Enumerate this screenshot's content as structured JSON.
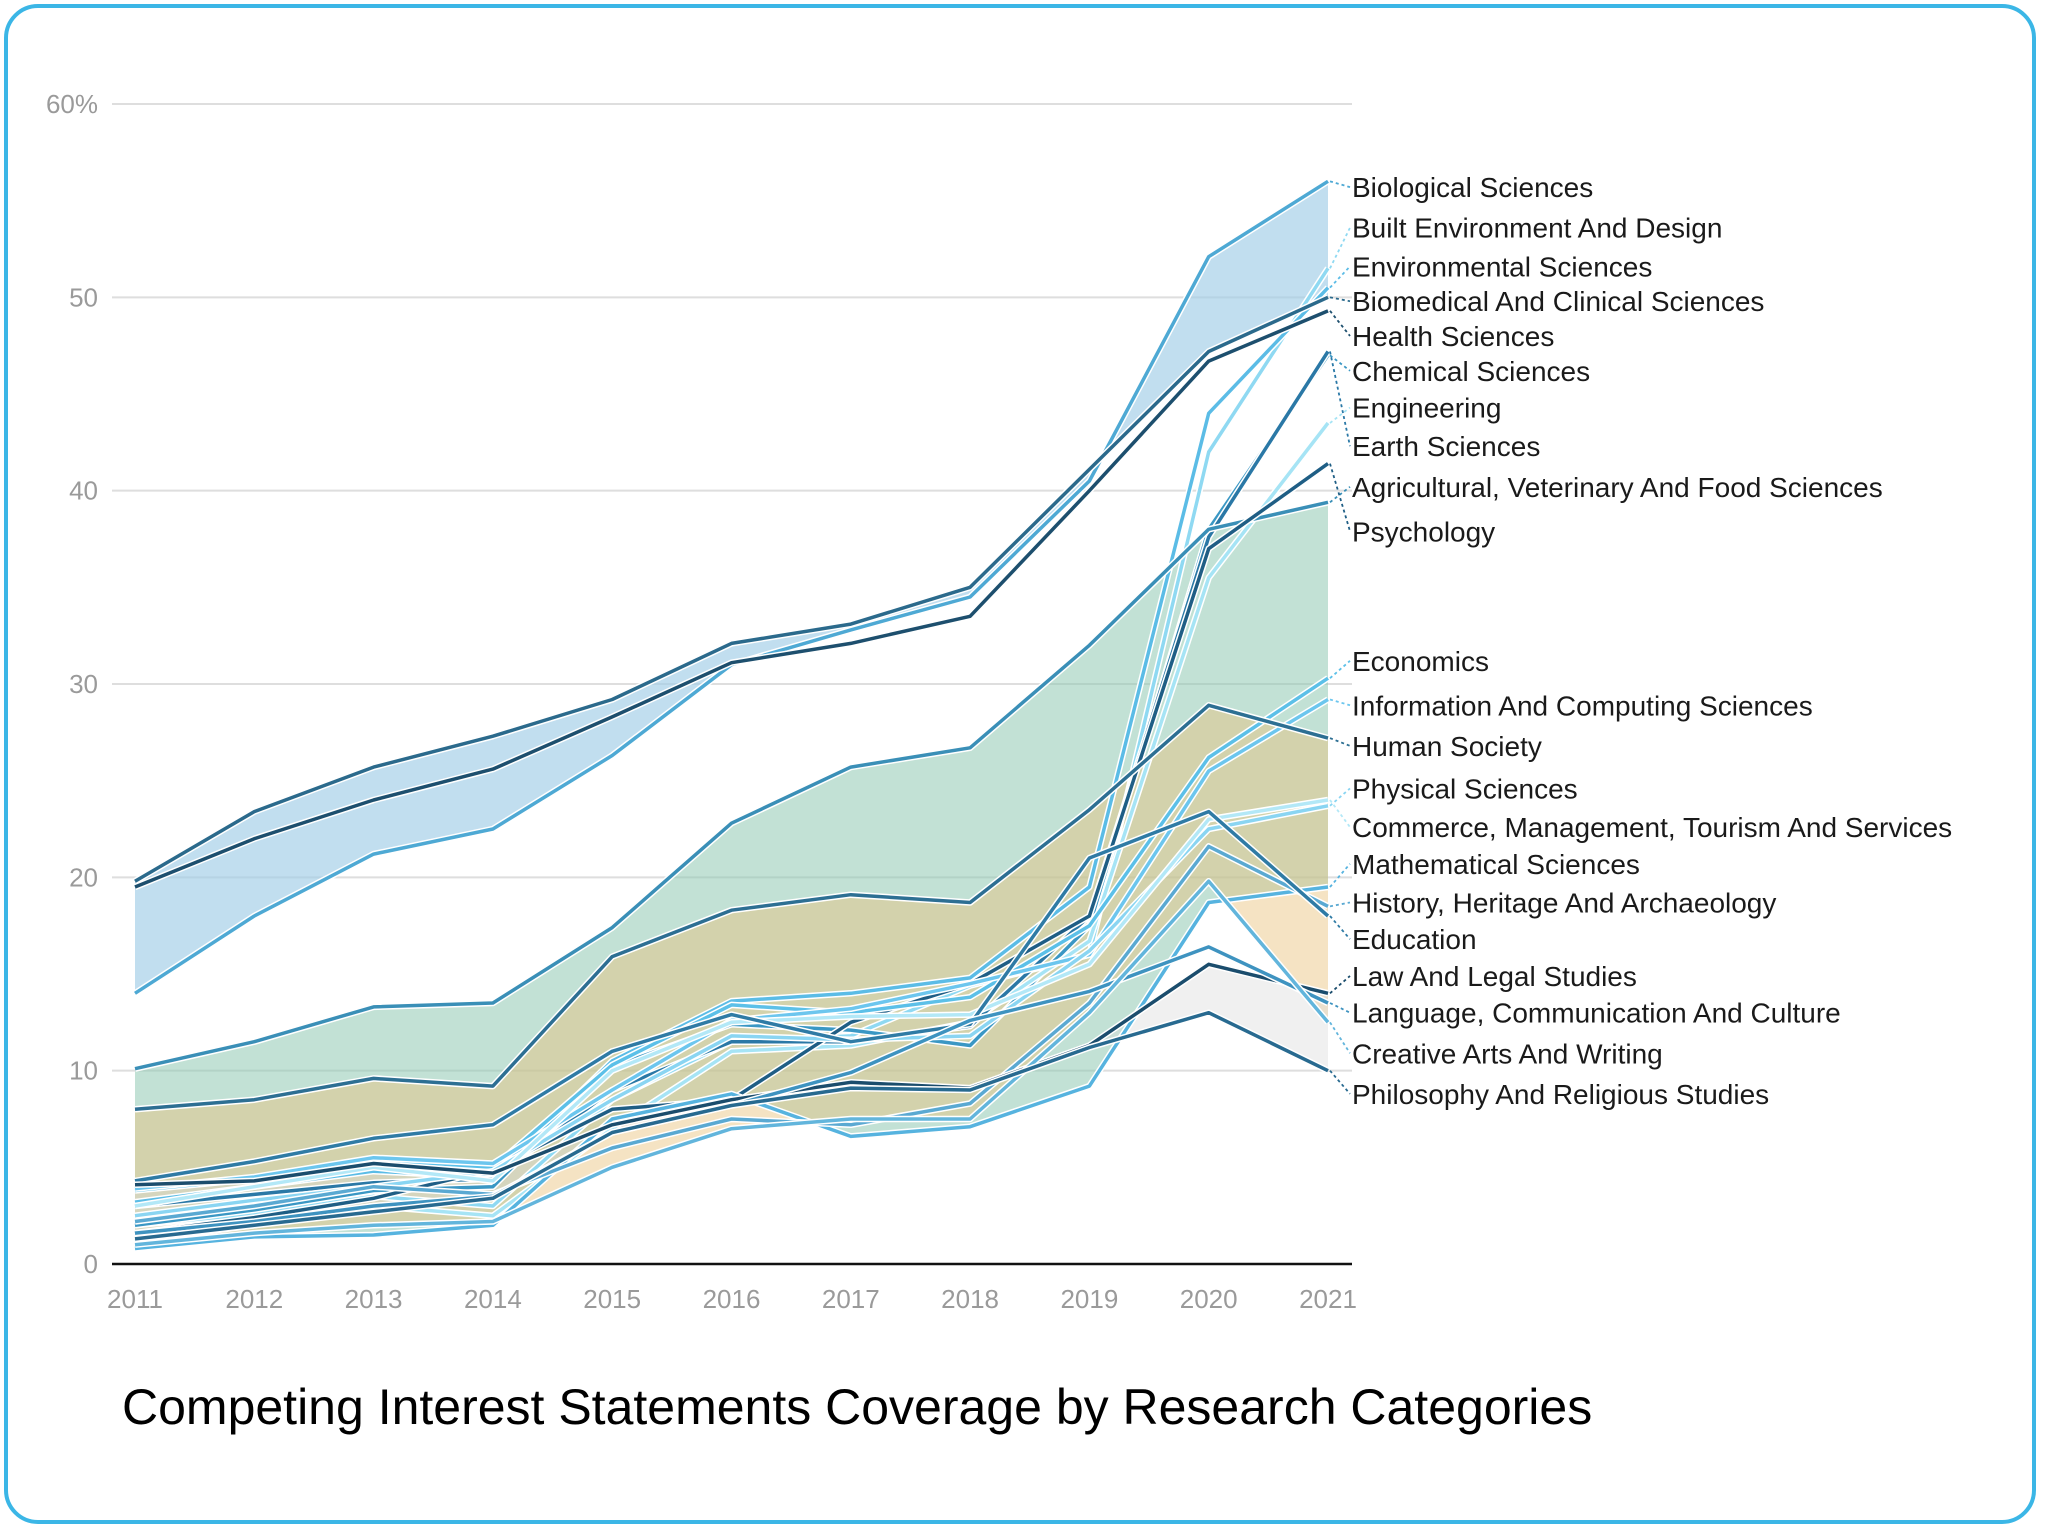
{
  "chart_data": {
    "type": "line",
    "title": "Competing Interest Statements Coverage by Research Categories",
    "xlabel": "",
    "ylabel": "",
    "x": [
      "2011",
      "2012",
      "2013",
      "2014",
      "2015",
      "2016",
      "2017",
      "2018",
      "2019",
      "2020",
      "2021"
    ],
    "ylim": [
      0,
      60
    ],
    "yticks": [
      0,
      10,
      20,
      30,
      40,
      50,
      60
    ],
    "ytick_labels": [
      "0",
      "10",
      "20",
      "30",
      "40",
      "50",
      "60%"
    ],
    "grid": true,
    "legend": "direct labels at right end of lines",
    "series": [
      {
        "name": "Biological Sciences",
        "color": "#4ea9d4",
        "values": [
          14.0,
          18.0,
          21.2,
          22.5,
          26.3,
          31.0,
          32.8,
          34.5,
          40.5,
          52.1,
          56.0
        ]
      },
      {
        "name": "Built Environment And Design",
        "color": "#8fd9f2",
        "values": [
          2.0,
          2.6,
          3.5,
          3.0,
          8.5,
          11.5,
          11.8,
          14.4,
          16.0,
          42.0,
          51.5
        ]
      },
      {
        "name": "Environmental Sciences",
        "color": "#5bbce6",
        "values": [
          3.2,
          4.0,
          4.8,
          4.5,
          10.5,
          13.6,
          14.0,
          14.8,
          19.5,
          44.0,
          50.5
        ]
      },
      {
        "name": "Biomedical And Clinical Sciences",
        "color": "#2b6a8c",
        "values": [
          19.8,
          23.4,
          25.7,
          27.3,
          29.2,
          32.1,
          33.1,
          35.0,
          41.1,
          47.2,
          50.0
        ]
      },
      {
        "name": "Health Sciences",
        "color": "#1d4f6e",
        "values": [
          19.5,
          22.0,
          24.0,
          25.6,
          28.3,
          31.1,
          32.1,
          33.5,
          40.0,
          46.7,
          49.3
        ]
      },
      {
        "name": "Chemical Sciences",
        "color": "#3a97c4",
        "values": [
          2.0,
          2.8,
          3.8,
          4.0,
          10.2,
          12.4,
          12.1,
          11.3,
          17.5,
          38.0,
          47.0
        ]
      },
      {
        "name": "Engineering",
        "color": "#a6e4f5",
        "values": [
          1.2,
          2.0,
          3.0,
          2.5,
          7.0,
          11.0,
          11.3,
          12.5,
          16.7,
          35.5,
          43.5
        ]
      },
      {
        "name": "Earth Sciences",
        "color": "#2a78a6",
        "values": [
          3.0,
          3.6,
          4.2,
          4.4,
          9.0,
          11.5,
          11.5,
          12.3,
          18.0,
          37.6,
          47.2
        ]
      },
      {
        "name": "Agricultural, Veterinary And Food Sciences",
        "color": "#3a8fb7",
        "values": [
          10.1,
          11.5,
          13.3,
          13.5,
          17.4,
          22.8,
          25.7,
          26.7,
          32.0,
          38.0,
          39.4
        ]
      },
      {
        "name": "Psychology",
        "color": "#1f5e85",
        "values": [
          1.6,
          2.4,
          3.4,
          4.9,
          8.0,
          8.5,
          12.5,
          14.5,
          18.0,
          37.0,
          41.4
        ]
      },
      {
        "name": "Economics",
        "color": "#5cc0e8",
        "values": [
          3.8,
          4.4,
          5.4,
          5.0,
          10.3,
          13.4,
          13.0,
          13.8,
          17.5,
          26.2,
          30.3
        ]
      },
      {
        "name": "Information And Computing Sciences",
        "color": "#6cc6ee",
        "values": [
          3.9,
          4.5,
          5.5,
          5.2,
          9.0,
          12.6,
          13.2,
          14.5,
          16.0,
          25.5,
          29.2
        ]
      },
      {
        "name": "Human Society",
        "color": "#2d6f93",
        "values": [
          8.0,
          8.5,
          9.6,
          9.2,
          15.9,
          18.3,
          19.1,
          18.7,
          23.5,
          28.9,
          27.2
        ]
      },
      {
        "name": "Physical Sciences",
        "color": "#8ad5f2",
        "values": [
          2.5,
          3.3,
          4.0,
          4.8,
          8.5,
          11.8,
          11.6,
          11.8,
          16.2,
          22.5,
          23.7
        ]
      },
      {
        "name": "Commerce, Management, Tourism And Services",
        "color": "#b3e8f7",
        "values": [
          3.0,
          4.0,
          5.0,
          4.3,
          10.0,
          12.5,
          12.8,
          12.9,
          15.5,
          23.0,
          24.0
        ]
      },
      {
        "name": "Mathematical Sciences",
        "color": "#56b3df",
        "values": [
          0.8,
          1.4,
          1.5,
          2.0,
          7.5,
          8.8,
          6.6,
          7.1,
          9.2,
          18.7,
          19.5
        ]
      },
      {
        "name": "History, Heritage And Archaeology",
        "color": "#5aa9d2",
        "values": [
          2.2,
          3.0,
          4.0,
          3.6,
          6.0,
          7.5,
          7.2,
          8.3,
          13.5,
          21.6,
          18.5
        ]
      },
      {
        "name": "Education",
        "color": "#2f7ba5",
        "values": [
          4.3,
          5.3,
          6.5,
          7.2,
          11.0,
          12.9,
          11.5,
          12.4,
          21.0,
          23.4,
          18.0
        ]
      },
      {
        "name": "Law And Legal Studies",
        "color": "#1b4d6d",
        "values": [
          4.1,
          4.3,
          5.2,
          4.7,
          7.2,
          8.5,
          9.4,
          9.1,
          11.3,
          15.5,
          14.0
        ]
      },
      {
        "name": "Language, Communication And Culture",
        "color": "#3e93c0",
        "values": [
          1.6,
          2.2,
          3.0,
          3.5,
          6.8,
          8.2,
          9.9,
          12.6,
          14.1,
          16.4,
          13.5
        ]
      },
      {
        "name": "Creative Arts And Writing",
        "color": "#62b5dc",
        "values": [
          1.0,
          1.6,
          2.0,
          2.2,
          5.0,
          7.0,
          7.5,
          7.5,
          13.0,
          19.8,
          12.5
        ]
      },
      {
        "name": "Philosophy And Religious Studies",
        "color": "#286a90",
        "values": [
          1.3,
          2.0,
          2.7,
          3.4,
          6.8,
          8.2,
          9.1,
          9.0,
          11.2,
          13.0,
          10.0
        ]
      }
    ],
    "bands": [
      {
        "upper": "Biomedical And Clinical Sciences",
        "lower": "Biological Sciences",
        "color": "#9fcde6",
        "opacity": 0.65
      },
      {
        "upper": "Agricultural, Veterinary And Food Sciences",
        "lower": "Mathematical Sciences",
        "color": "#8fc9b3",
        "opacity": 0.55
      },
      {
        "upper": "Human Society",
        "lower": "Creative Arts And Writing",
        "color": "#e9c07a",
        "opacity": 0.45
      },
      {
        "upper": "Law And Legal Studies",
        "lower": "Philosophy And Religious Studies",
        "color": "#d9d9d9",
        "opacity": 0.4
      }
    ],
    "labels": [
      {
        "series": "Biological Sciences",
        "label_value": 55.7
      },
      {
        "series": "Built Environment And Design",
        "label_value": 53.6
      },
      {
        "series": "Environmental Sciences",
        "label_value": 51.6
      },
      {
        "series": "Biomedical And Clinical Sciences",
        "label_value": 49.8
      },
      {
        "series": "Health Sciences",
        "label_value": 48.0
      },
      {
        "series": "Chemical Sciences",
        "label_value": 46.2
      },
      {
        "series": "Engineering",
        "label_value": 44.3
      },
      {
        "series": "Earth Sciences",
        "label_value": 42.3
      },
      {
        "series": "Agricultural, Veterinary And Food Sciences",
        "label_value": 40.2
      },
      {
        "series": "Psychology",
        "label_value": 37.9
      },
      {
        "series": "Economics",
        "label_value": 31.2
      },
      {
        "series": "Information And Computing Sciences",
        "label_value": 28.9
      },
      {
        "series": "Human Society",
        "label_value": 26.8
      },
      {
        "series": "Physical Sciences",
        "label_value": 24.6
      },
      {
        "series": "Commerce, Management, Tourism And Services",
        "label_value": 22.6
      },
      {
        "series": "Mathematical Sciences",
        "label_value": 20.7
      },
      {
        "series": "History, Heritage And Archaeology",
        "label_value": 18.7
      },
      {
        "series": "Education",
        "label_value": 16.8
      },
      {
        "series": "Law And Legal Studies",
        "label_value": 14.9
      },
      {
        "series": "Language, Communication And Culture",
        "label_value": 13.0
      },
      {
        "series": "Creative Arts And Writing",
        "label_value": 10.9
      },
      {
        "series": "Philosophy And Religious Studies",
        "label_value": 8.8
      }
    ]
  }
}
